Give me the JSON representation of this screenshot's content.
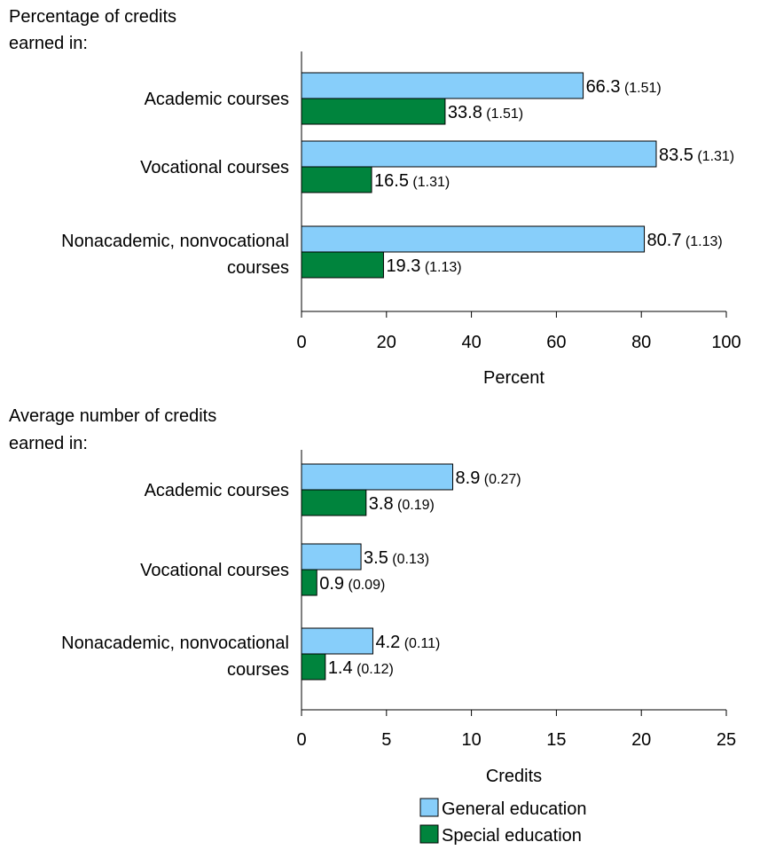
{
  "chart_data": [
    {
      "type": "bar",
      "orientation": "horizontal",
      "title": "Percentage of credits earned in:",
      "xlabel": "Percent",
      "xlim": [
        0,
        100
      ],
      "xticks": [
        "0",
        "20",
        "40",
        "60",
        "80",
        "100"
      ],
      "categories": [
        [
          "Academic courses"
        ],
        [
          "Vocational courses"
        ],
        [
          "Nonacademic, nonvocational",
          "courses"
        ]
      ],
      "series": [
        {
          "name": "General education",
          "color": "#87CEFA",
          "values": [
            66.3,
            83.5,
            80.7
          ],
          "value_labels": [
            "66.3",
            "83.5",
            "80.7"
          ],
          "se_labels": [
            "(1.51)",
            "(1.31)",
            "(1.13)"
          ]
        },
        {
          "name": "Special education",
          "color": "#00843D",
          "values": [
            33.8,
            16.5,
            19.3
          ],
          "value_labels": [
            "33.8",
            "16.5",
            "19.3"
          ],
          "se_labels": [
            "(1.51)",
            "(1.31)",
            "(1.13)"
          ]
        }
      ]
    },
    {
      "type": "bar",
      "orientation": "horizontal",
      "title": "Average number of credits earned in:",
      "xlabel": "Credits",
      "xlim": [
        0,
        25
      ],
      "xticks": [
        "0",
        "5",
        "10",
        "15",
        "20",
        "25"
      ],
      "categories": [
        [
          "Academic courses"
        ],
        [
          "Vocational courses"
        ],
        [
          "Nonacademic, nonvocational",
          "courses"
        ]
      ],
      "series": [
        {
          "name": "General education",
          "color": "#87CEFA",
          "values": [
            8.9,
            3.5,
            4.2
          ],
          "value_labels": [
            "8.9",
            "3.5",
            "4.2"
          ],
          "se_labels": [
            "(0.27)",
            "(0.13)",
            "(0.11)"
          ]
        },
        {
          "name": "Special education",
          "color": "#00843D",
          "values": [
            3.8,
            0.9,
            1.4
          ],
          "value_labels": [
            "3.8",
            "0.9",
            "1.4"
          ],
          "se_labels": [
            "(0.19)",
            "(0.09)",
            "(0.12)"
          ]
        }
      ]
    }
  ],
  "legend": {
    "items": [
      {
        "label": "General education",
        "color": "#87CEFA"
      },
      {
        "label": "Special education",
        "color": "#00843D"
      }
    ]
  }
}
